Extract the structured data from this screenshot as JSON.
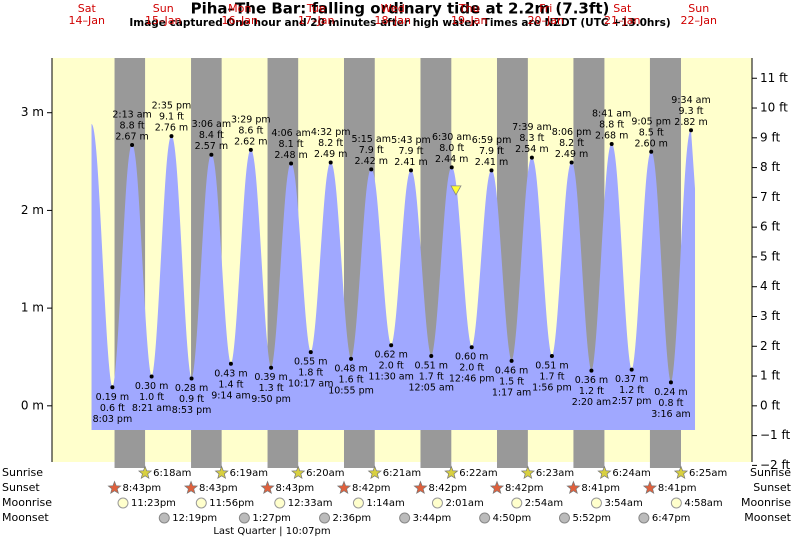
{
  "chart_data": {
    "type": "area",
    "title": "Piha–The Bar: falling  ordinary tide at 2.2m (7.3ft)",
    "subtitle": "Image captured One hour and 20 minutes after high water. Times are NZDT (UTC +13.0hrs)",
    "days": [
      {
        "name": "Sat",
        "date": "14–Jan"
      },
      {
        "name": "Sun",
        "date": "15–Jan"
      },
      {
        "name": "Mon",
        "date": "16–Jan"
      },
      {
        "name": "Tue",
        "date": "17–Jan"
      },
      {
        "name": "Wed",
        "date": "18–Jan"
      },
      {
        "name": "Thu",
        "date": "19–Jan"
      },
      {
        "name": "Fri",
        "date": "20–Jan"
      },
      {
        "name": "Sat",
        "date": "21–Jan"
      },
      {
        "name": "Sun",
        "date": "22–Jan"
      }
    ],
    "x": [
      13.5,
      20.05,
      26.22,
      32.35,
      38.58,
      44.88,
      51.1,
      57.23,
      63.48,
      69.83,
      76.1,
      82.28,
      88.53,
      94.92,
      101.25,
      107.5,
      113.72,
      120.08,
      126.5,
      132.77,
      138.98,
      145.28,
      151.65,
      157.93,
      164.1,
      170.33,
      176.68,
      182.95,
      189.08,
      195.27,
      201.57
    ],
    "values": [
      2.88,
      0.19,
      2.67,
      0.3,
      2.76,
      0.28,
      2.57,
      0.43,
      2.62,
      0.39,
      2.48,
      0.55,
      2.49,
      0.48,
      2.42,
      0.62,
      2.41,
      0.51,
      2.44,
      0.6,
      2.41,
      0.46,
      2.54,
      0.51,
      2.49,
      0.36,
      2.68,
      0.37,
      2.6,
      0.24,
      2.82
    ],
    "value_labels": [
      null,
      "0.19 m",
      "2.67 m",
      "0.30 m",
      "2.76 m",
      "0.28 m",
      "2.57 m",
      "0.43 m",
      "2.62 m",
      "0.39 m",
      "2.48 m",
      "0.55 m",
      "2.49 m",
      "0.48 m",
      "2.42 m",
      "0.62 m",
      "2.41 m",
      "0.51 m",
      "2.44 m",
      "0.60 m",
      "2.41 m",
      "0.46 m",
      "2.54 m",
      "0.51 m",
      "2.49 m",
      "0.36 m",
      "2.68 m",
      "0.37 m",
      "2.60 m",
      "0.24 m",
      "2.82 m"
    ],
    "feet_labels": [
      null,
      "0.6 ft",
      "8.8 ft",
      "1.0 ft",
      "9.1 ft",
      "0.9 ft",
      "8.4 ft",
      "1.4 ft",
      "8.6 ft",
      "1.3 ft",
      "8.1 ft",
      "1.8 ft",
      "8.2 ft",
      "1.6 ft",
      "7.9 ft",
      "2.0 ft",
      "7.9 ft",
      "1.7 ft",
      "8.0 ft",
      "2.0 ft",
      "7.9 ft",
      "1.5 ft",
      "8.3 ft",
      "1.7 ft",
      "8.2 ft",
      "1.2 ft",
      "8.8 ft",
      "1.2 ft",
      "8.5 ft",
      "0.8 ft",
      "9.3 ft"
    ],
    "time_labels": [
      null,
      "8:03 pm",
      "2:13 am",
      "8:21 am",
      "2:35 pm",
      "8:53 pm",
      "3:06 am",
      "9:14 am",
      "3:29 pm",
      "9:50 pm",
      "4:06 am",
      "10:17 am",
      "4:32 pm",
      "10:55 pm",
      "5:15 am",
      "11:30 am",
      "5:43 pm",
      "12:05 am",
      "6:30 am",
      "12:46 pm",
      "6:59 pm",
      "1:17 am",
      "7:39 am",
      "1:56 pm",
      "8:06 pm",
      "2:20 am",
      "8:41 am",
      "2:57 pm",
      "9:05 pm",
      "3:16 am",
      "9:34 am"
    ],
    "color": "#a0a8ff",
    "day_color": "#ffffcc",
    "night_color": "#999999",
    "xlim": [
      1.1,
      220.7
    ],
    "ylim": [
      -0.575,
      3.56
    ],
    "yticks": [
      {
        "value": 0,
        "label": "0 m"
      },
      {
        "value": 1,
        "label": "1 m"
      },
      {
        "value": 2,
        "label": "2 m"
      },
      {
        "value": 3,
        "label": "3 m"
      }
    ],
    "y2lim": [
      -1.886,
      11.68
    ],
    "y2ticks": [
      {
        "value": -2,
        "label": "−2 ft"
      },
      {
        "value": -1,
        "label": "−1 ft"
      },
      {
        "value": 0,
        "label": "0 ft"
      },
      {
        "value": 1,
        "label": "1 ft"
      },
      {
        "value": 2,
        "label": "2 ft"
      },
      {
        "value": 3,
        "label": "3 ft"
      },
      {
        "value": 4,
        "label": "4 ft"
      },
      {
        "value": 5,
        "label": "5 ft"
      },
      {
        "value": 6,
        "label": "6 ft"
      },
      {
        "value": 7,
        "label": "7 ft"
      },
      {
        "value": 8,
        "label": "8 ft"
      },
      {
        "value": 9,
        "label": "9 ft"
      },
      {
        "value": 10,
        "label": "10 ft"
      },
      {
        "value": 11,
        "label": "11 ft"
      }
    ],
    "current": {
      "x": 127.83,
      "value": 2.2
    },
    "row_labels": [
      "Sunrise",
      "Sunset",
      "Moonrise",
      "Moonset"
    ],
    "sunrise": {
      "x": [
        30.3,
        54.32,
        78.33,
        102.35,
        126.37,
        150.38,
        174.4,
        198.42
      ],
      "labels": [
        "6:18am",
        "6:19am",
        "6:20am",
        "6:21am",
        "6:22am",
        "6:23am",
        "6:24am",
        "6:25am"
      ]
    },
    "sunset": {
      "x": [
        20.72,
        44.72,
        68.72,
        92.7,
        116.7,
        140.7,
        164.68,
        188.68
      ],
      "labels": [
        "8:43pm",
        "8:43pm",
        "8:43pm",
        "8:42pm",
        "8:42pm",
        "8:42pm",
        "8:41pm",
        "8:41pm"
      ]
    },
    "moonrise": {
      "x": [
        23.38,
        47.93,
        72.55,
        97.23,
        122.02,
        146.9,
        171.9,
        196.97
      ],
      "labels": [
        "11:23pm",
        "11:56pm",
        "12:33am",
        "1:14am",
        "2:01am",
        "2:54am",
        "3:54am",
        "4:58am"
      ]
    },
    "moonset": {
      "x": [
        36.32,
        61.45,
        86.6,
        111.73,
        136.83,
        161.87,
        186.78
      ],
      "labels": [
        "12:19pm",
        "1:27pm",
        "2:36pm",
        "3:44pm",
        "4:50pm",
        "5:52pm",
        "6:47pm"
      ]
    },
    "moon_phase": {
      "x": 70.12,
      "label": "Last Quarter | 10:07pm"
    }
  }
}
